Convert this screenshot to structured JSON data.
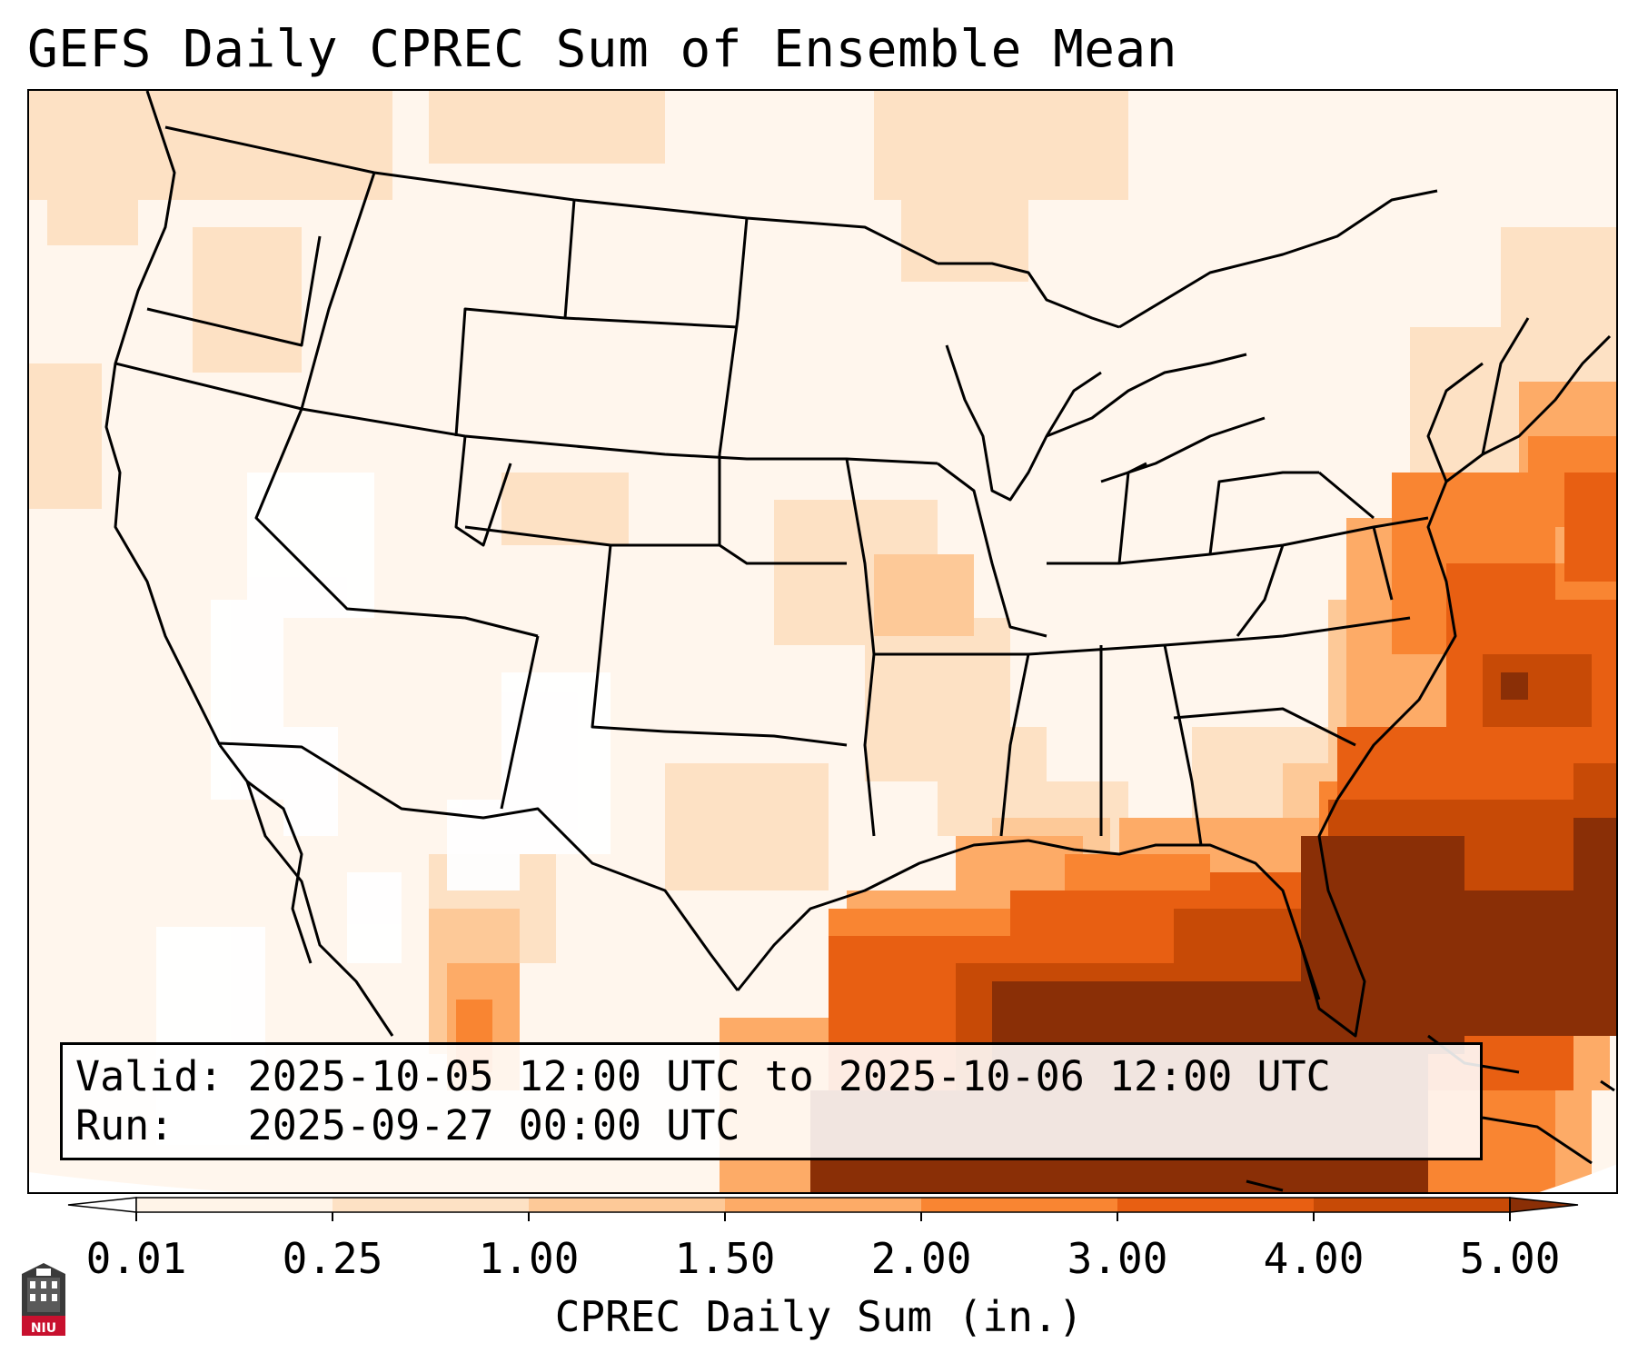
{
  "title": "GEFS Daily CPREC Sum of Ensemble Mean",
  "info": {
    "valid_label": "Valid:",
    "valid_value": "2025-10-05 12:00 UTC to 2025-10-06 12:00 UTC",
    "run_label": "Run:",
    "run_value": "2025-09-27 00:00 UTC"
  },
  "colorbar": {
    "label": "CPREC Daily Sum (in.)",
    "ticks": [
      "0.01",
      "0.25",
      "1.00",
      "1.50",
      "2.00",
      "3.00",
      "4.00",
      "5.00"
    ],
    "colors": [
      "#fff4e8",
      "#fde1c4",
      "#fdc998",
      "#fdab67",
      "#f98532",
      "#e85f12",
      "#c74a06",
      "#8a2f06"
    ],
    "extend_low_color": "#ffffff",
    "extend_high_color": "#8a2f06"
  },
  "map": {
    "projection": "lambert-conformal",
    "region": "CONUS",
    "base_color": "#fff6ed"
  },
  "logo": {
    "text": "NIU"
  }
}
